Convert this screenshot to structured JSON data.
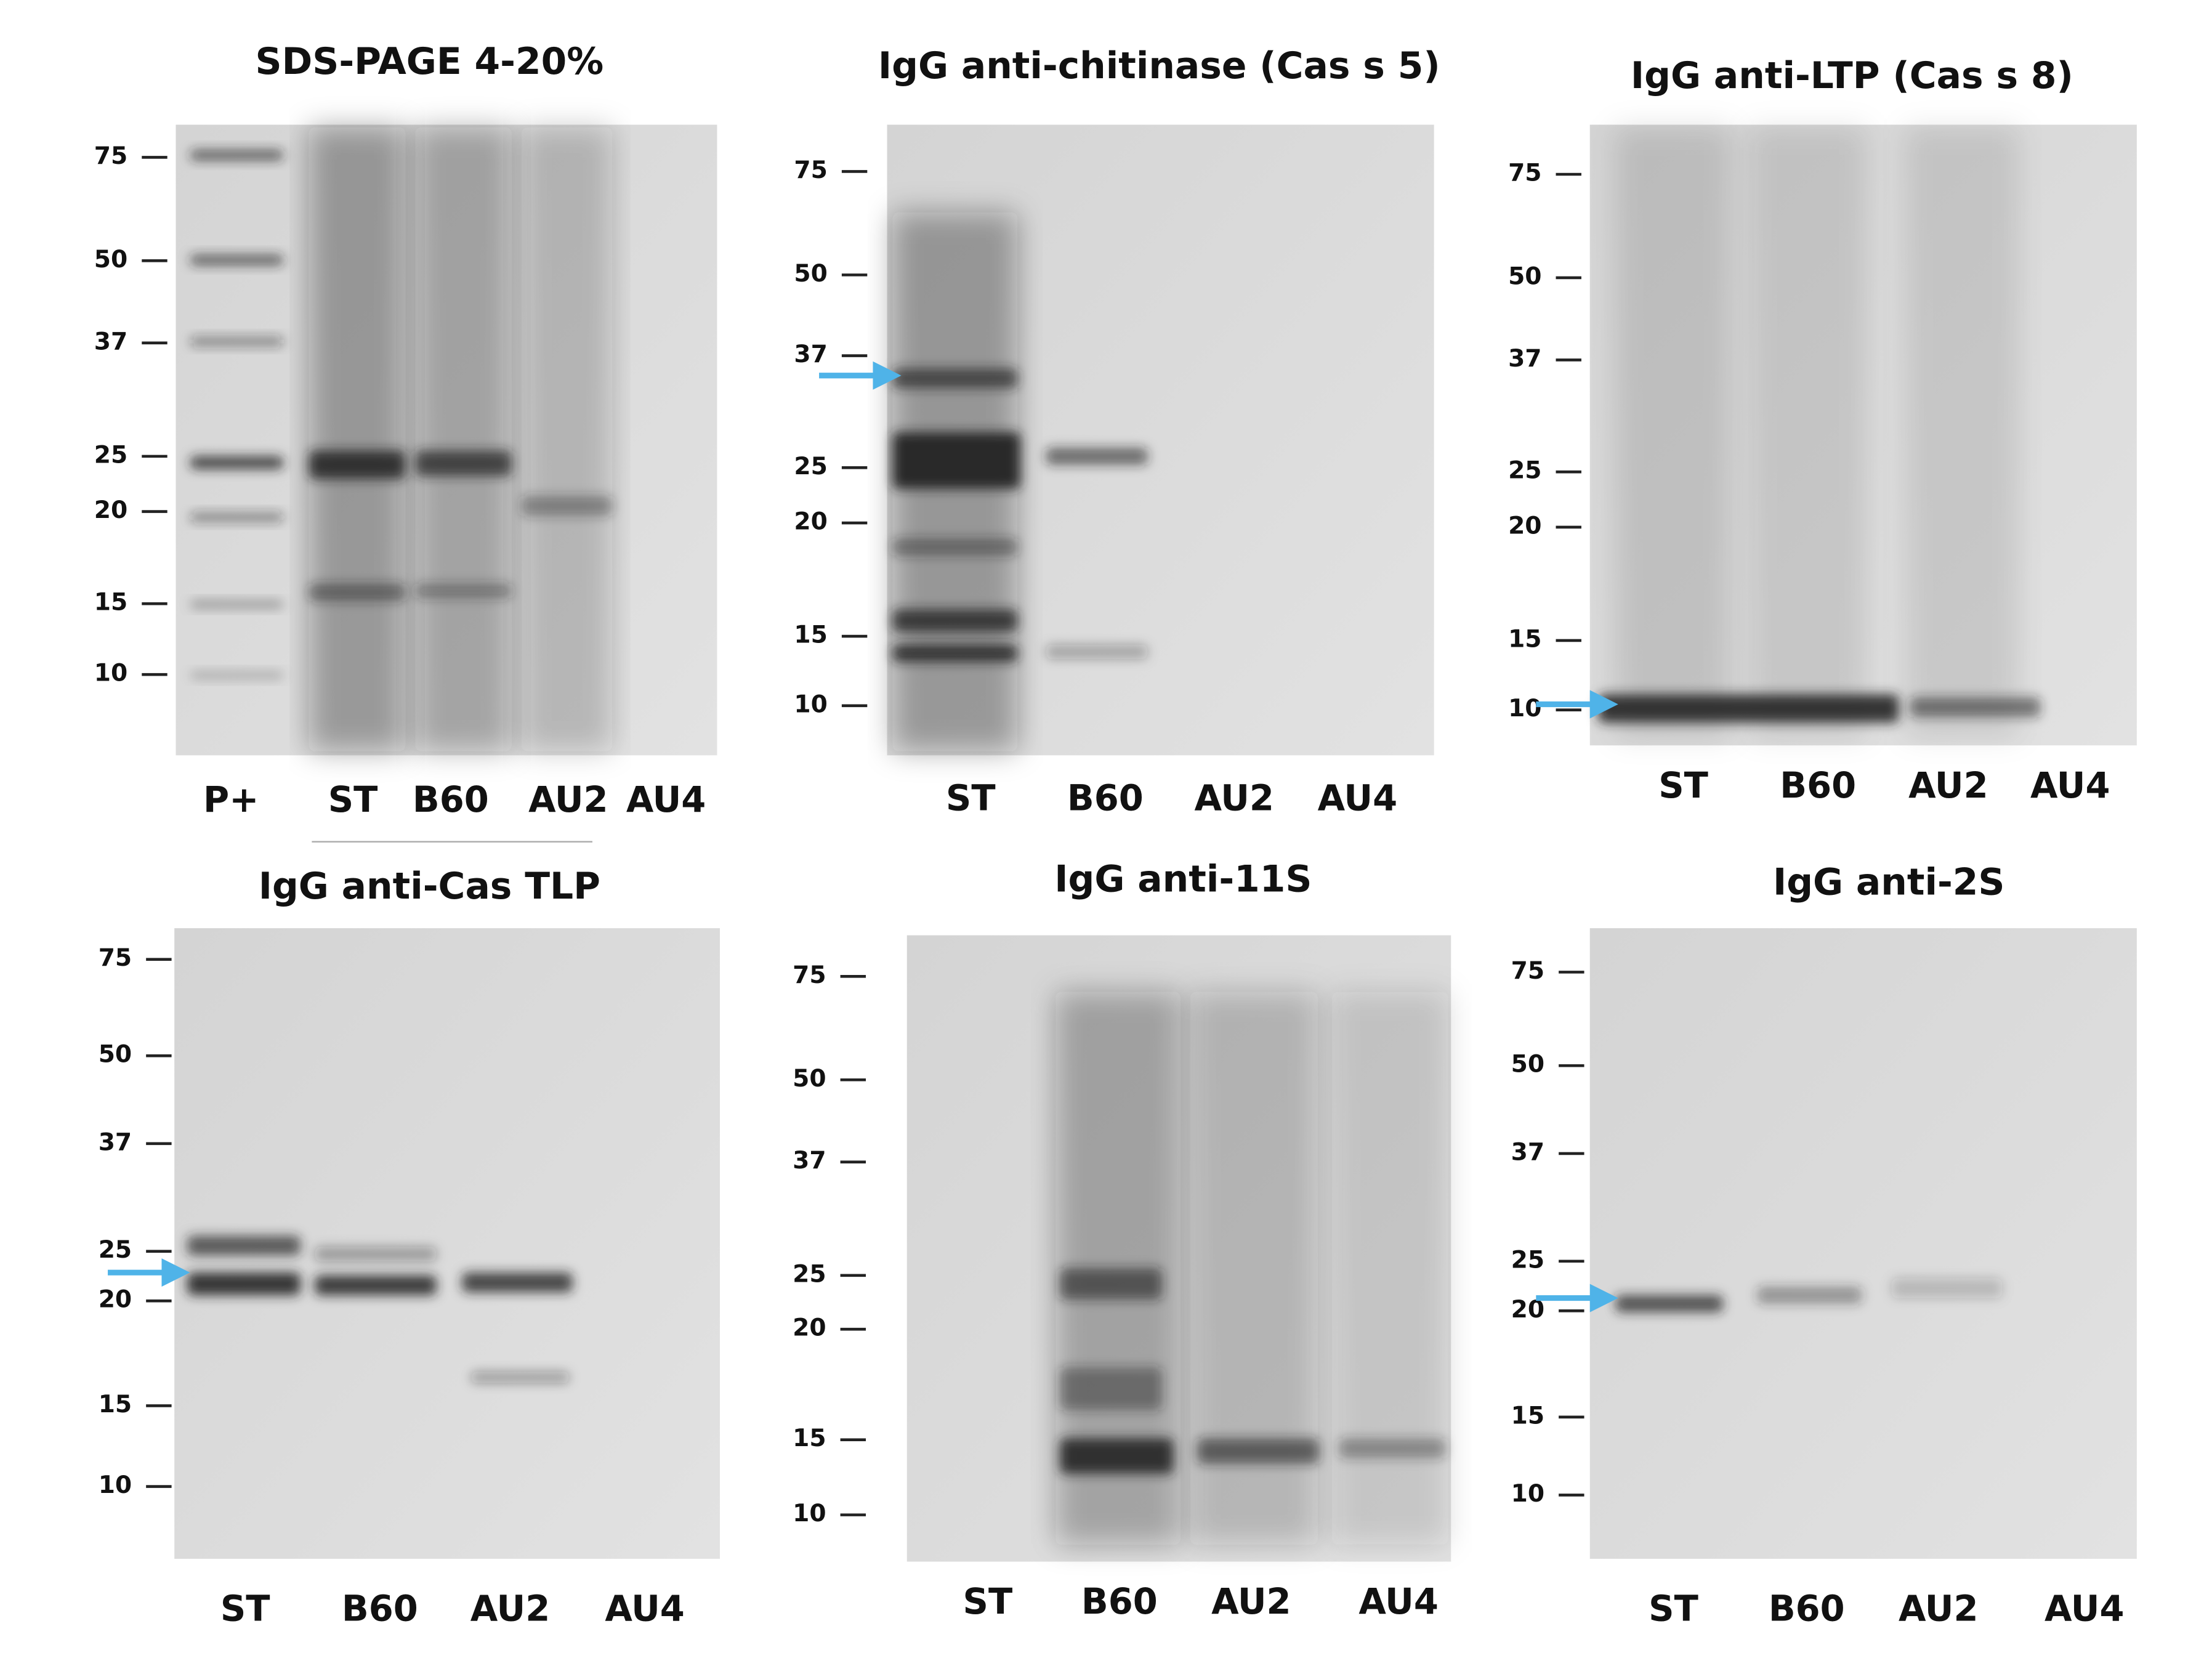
{
  "panels": [
    {
      "title": "SDS-PAGE 4-20%",
      "markers": [
        "75",
        "50",
        "37",
        "25",
        "20",
        "15",
        "10"
      ],
      "lanes": [
        "P+",
        "ST",
        "B60",
        "AU2",
        "AU4"
      ]
    },
    {
      "title": "IgG anti-chitinase (Cas s 5)",
      "markers": [
        "75",
        "50",
        "37",
        "25",
        "20",
        "15",
        "10"
      ],
      "lanes": [
        "ST",
        "B60",
        "AU2",
        "AU4"
      ]
    },
    {
      "title": "IgG anti-LTP (Cas s 8)",
      "markers": [
        "75",
        "50",
        "37",
        "25",
        "20",
        "15",
        "10"
      ],
      "lanes": [
        "ST",
        "B60",
        "AU2",
        "AU4"
      ]
    },
    {
      "title": "IgG anti-Cas TLP",
      "markers": [
        "75",
        "50",
        "37",
        "25",
        "20",
        "15",
        "10"
      ],
      "lanes": [
        "ST",
        "B60",
        "AU2",
        "AU4"
      ]
    },
    {
      "title": "IgG anti-11S",
      "markers": [
        "75",
        "50",
        "37",
        "25",
        "20",
        "15",
        "10"
      ],
      "lanes": [
        "ST",
        "B60",
        "AU2",
        "AU4"
      ]
    },
    {
      "title": "IgG anti-2S",
      "markers": [
        "75",
        "50",
        "37",
        "25",
        "20",
        "15",
        "10"
      ],
      "lanes": [
        "ST",
        "B60",
        "AU2",
        "AU4"
      ]
    }
  ]
}
